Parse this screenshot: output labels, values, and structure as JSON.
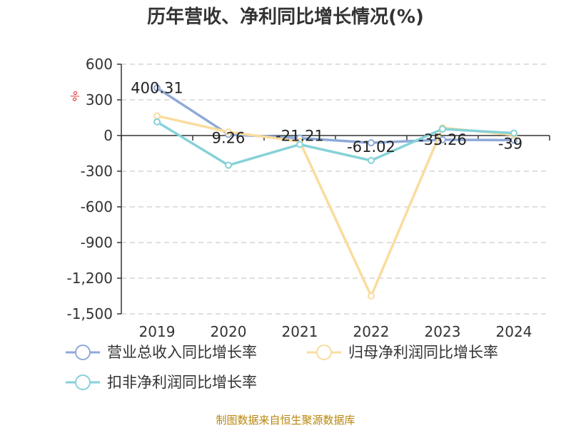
{
  "chart_data": {
    "type": "line",
    "title": "历年营收、净利同比增长情况(%)",
    "unit_label": "%",
    "categories": [
      "2019",
      "2020",
      "2021",
      "2022",
      "2023",
      "2024"
    ],
    "y_ticks": [
      "600",
      "300",
      "0",
      "-300",
      "-600",
      "-900",
      "-1,200",
      "-1,500"
    ],
    "ylim": [
      -1500,
      600
    ],
    "grid": "horizontal dashed",
    "legend_position": "bottom",
    "series": [
      {
        "name": "营业总收入同比增长率",
        "color": "#8eaad8",
        "values": [
          400.31,
          9.26,
          -21.21,
          -61.02,
          -35.26,
          -39
        ],
        "labels": [
          "400.31",
          "9.26",
          "-21.21",
          "-61.02",
          "-35.26",
          "-39"
        ]
      },
      {
        "name": "归母净利润同比增长率",
        "color": "#f9dc9e",
        "values": [
          165,
          30,
          -50,
          -1350,
          65,
          5
        ]
      },
      {
        "name": "扣非净利润同比增长率",
        "color": "#86d2d8",
        "values": [
          115,
          -250,
          -75,
          -210,
          55,
          20
        ]
      }
    ]
  },
  "footer": {
    "source": "制图数据来自恒生聚源数据库"
  }
}
